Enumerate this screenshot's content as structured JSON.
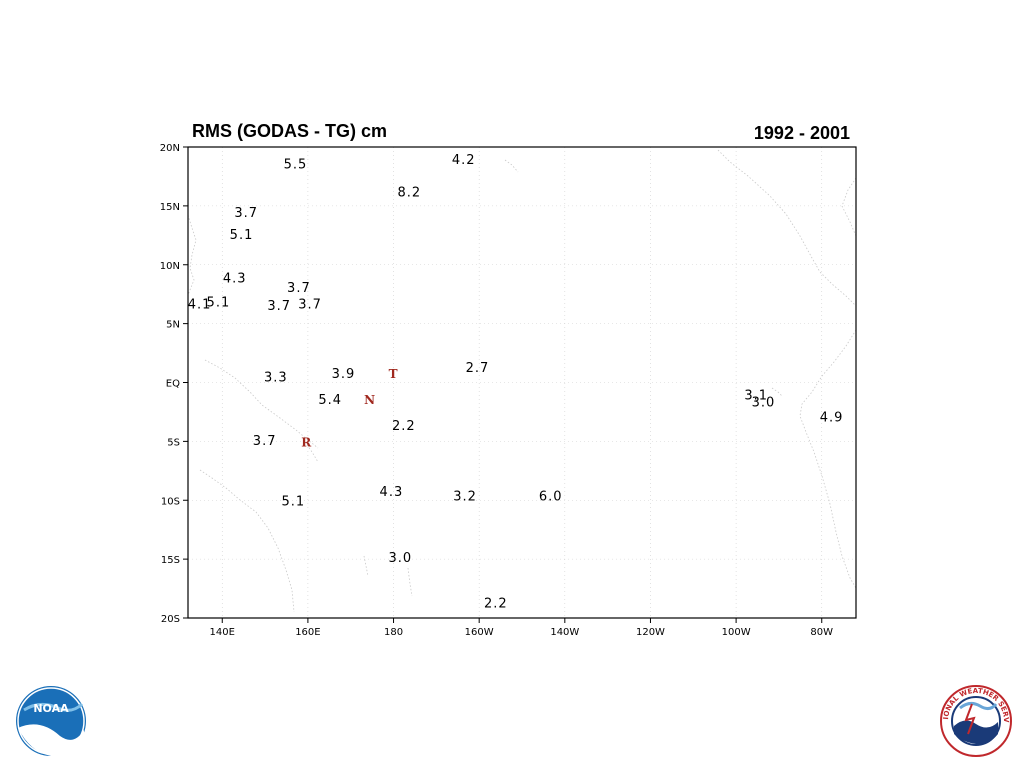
{
  "title": "RMS  (GODAS - TG) cm",
  "period": "1992 - 2001",
  "chart_data": {
    "type": "scatter",
    "title": "RMS  (GODAS - TG) cm",
    "subtitle": "1992 - 2001",
    "xlim": [
      132,
      288
    ],
    "ylim": [
      -20,
      20
    ],
    "x_ticks": [
      {
        "lon": 140,
        "label": "140E"
      },
      {
        "lon": 160,
        "label": "160E"
      },
      {
        "lon": 180,
        "label": "180"
      },
      {
        "lon": 200,
        "label": "160W"
      },
      {
        "lon": 220,
        "label": "140W"
      },
      {
        "lon": 240,
        "label": "120W"
      },
      {
        "lon": 260,
        "label": "100W"
      },
      {
        "lon": 280,
        "label": "80W"
      }
    ],
    "y_ticks": [
      {
        "lat": 20,
        "label": "20N"
      },
      {
        "lat": 15,
        "label": "15N"
      },
      {
        "lat": 10,
        "label": "10N"
      },
      {
        "lat": 5,
        "label": "5N"
      },
      {
        "lat": 0,
        "label": "EQ"
      },
      {
        "lat": -5,
        "label": "5S"
      },
      {
        "lat": -10,
        "label": "10S"
      },
      {
        "lat": -15,
        "label": "15S"
      },
      {
        "lat": -20,
        "label": "20S"
      }
    ],
    "grid": true,
    "points": [
      {
        "lon": 157.1,
        "lat": 18.6,
        "label": "5.5"
      },
      {
        "lon": 196.4,
        "lat": 19.0,
        "label": "4.2"
      },
      {
        "lon": 183.7,
        "lat": 16.2,
        "label": "8.2"
      },
      {
        "lon": 145.6,
        "lat": 14.5,
        "label": "3.7"
      },
      {
        "lon": 144.5,
        "lat": 12.6,
        "label": "5.1"
      },
      {
        "lon": 142.9,
        "lat": 8.9,
        "label": "4.3"
      },
      {
        "lon": 157.9,
        "lat": 8.1,
        "label": "3.7"
      },
      {
        "lon": 134.7,
        "lat": 6.7,
        "label": "4.1"
      },
      {
        "lon": 139.1,
        "lat": 6.9,
        "label": "5.1"
      },
      {
        "lon": 153.3,
        "lat": 6.6,
        "label": "3.7"
      },
      {
        "lon": 160.5,
        "lat": 6.7,
        "label": "3.7"
      },
      {
        "lon": 199.6,
        "lat": 1.3,
        "label": "2.7"
      },
      {
        "lon": 152.5,
        "lat": 0.5,
        "label": "3.3"
      },
      {
        "lon": 168.3,
        "lat": 0.8,
        "label": "3.9"
      },
      {
        "lon": 264.7,
        "lat": -1.0,
        "label": "3.1"
      },
      {
        "lon": 266.4,
        "lat": -1.6,
        "label": "3.0"
      },
      {
        "lon": 165.2,
        "lat": -1.4,
        "label": "5.4"
      },
      {
        "lon": 282.3,
        "lat": -2.9,
        "label": "4.9"
      },
      {
        "lon": 182.4,
        "lat": -3.6,
        "label": "2.2"
      },
      {
        "lon": 149.9,
        "lat": -4.9,
        "label": "3.7"
      },
      {
        "lon": 179.5,
        "lat": -9.2,
        "label": "4.3"
      },
      {
        "lon": 196.7,
        "lat": -9.6,
        "label": "3.2"
      },
      {
        "lon": 216.7,
        "lat": -9.6,
        "label": "6.0"
      },
      {
        "lon": 156.6,
        "lat": -10.0,
        "label": "5.1"
      },
      {
        "lon": 181.6,
        "lat": -14.8,
        "label": "3.0"
      },
      {
        "lon": 203.9,
        "lat": -18.7,
        "label": "2.2"
      }
    ],
    "markers": [
      {
        "lon": 179.9,
        "lat": 0.8,
        "label": "T"
      },
      {
        "lon": 174.4,
        "lat": -1.4,
        "label": "N"
      },
      {
        "lon": 159.6,
        "lat": -5.0,
        "label": "R"
      }
    ]
  },
  "logos": {
    "left": {
      "name": "noaa-logo",
      "text": "NOAA",
      "color": "#1a6fb8"
    },
    "right": {
      "name": "nws-logo",
      "text": "NATIONAL WEATHER SERVICE",
      "color": "#c0282c"
    }
  }
}
